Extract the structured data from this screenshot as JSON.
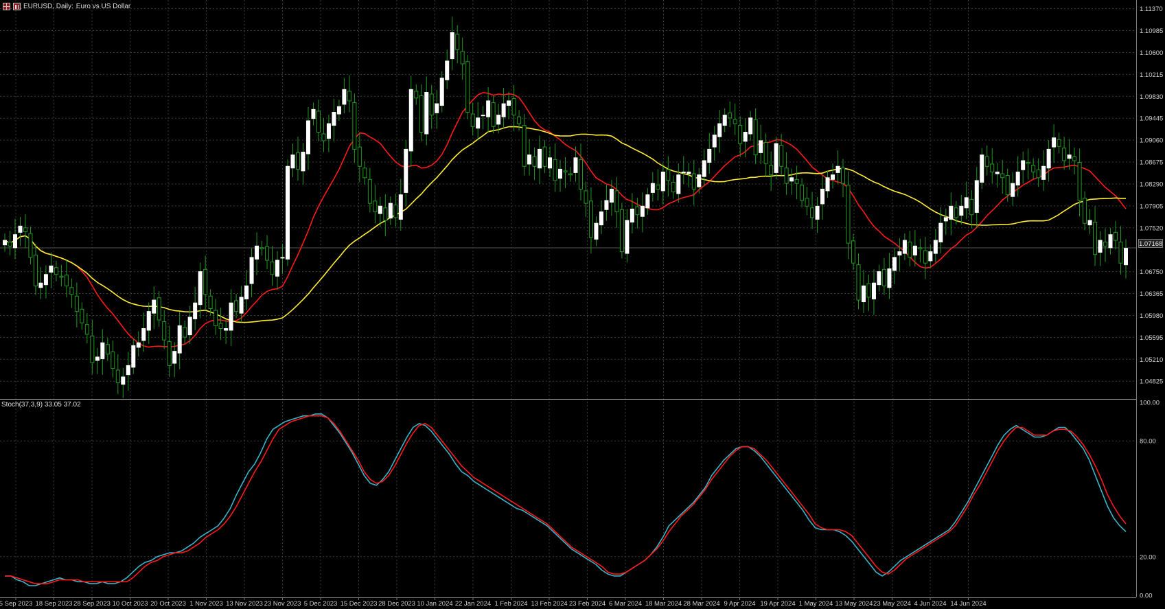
{
  "window": {
    "title_symbol": "EURUSD, Daily:",
    "title_desc": "Euro vs US Dollar",
    "icons": [
      "chart-grid-icon",
      "bar-chart-icon"
    ]
  },
  "colors": {
    "background": "#000000",
    "grid": "#3a3a3a",
    "bull_candle": "#ffffff",
    "bear_candle": "#000000",
    "wick": "#1f9b1f",
    "ma_fast": "#ff1a1a",
    "ma_slow": "#ffee33",
    "stoch_main": "#3ab4c8",
    "stoch_signal": "#ff1a1a",
    "axis_text": "#d0d0d0"
  },
  "price_axis": {
    "labels": [
      "1.11370",
      "1.10985",
      "1.10600",
      "1.10215",
      "1.09830",
      "1.09445",
      "1.09060",
      "1.08675",
      "1.08290",
      "1.07905",
      "1.07520",
      "1.07168",
      "1.06750",
      "1.06365",
      "1.05980",
      "1.05595",
      "1.05210",
      "1.04825"
    ],
    "current_price": "1.07168"
  },
  "indicator": {
    "label": "Stoch(37,3,9) 33.05 37.02",
    "axis_labels": [
      "100.00",
      "80.00",
      "20.00",
      "0.00"
    ]
  },
  "time_axis": {
    "labels": [
      "5 Sep 2023",
      "18 Sep 2023",
      "28 Sep 2023",
      "10 Oct 2023",
      "20 Oct 2023",
      "1 Nov 2023",
      "13 Nov 2023",
      "23 Nov 2023",
      "5 Dec 2023",
      "15 Dec 2023",
      "28 Dec 2023",
      "10 Jan 2024",
      "22 Jan 2024",
      "1 Feb 2024",
      "13 Feb 2024",
      "23 Feb 2024",
      "6 Mar 2024",
      "18 Mar 2024",
      "28 Mar 2024",
      "9 Apr 2024",
      "19 Apr 2024",
      "1 May 2024",
      "13 May 2024",
      "23 May 2024",
      "4 Jun 2024",
      "14 Jun 2024"
    ]
  },
  "chart_data": {
    "type": "candlestick",
    "symbol": "EURUSD",
    "timeframe": "Daily",
    "ylim": [
      1.0455,
      1.1145
    ],
    "closes": [
      1.073,
      1.072,
      1.074,
      1.0755,
      1.0745,
      1.07,
      1.065,
      1.0655,
      1.067,
      1.0685,
      1.067,
      1.0665,
      1.065,
      1.0635,
      1.0605,
      1.0585,
      1.0565,
      1.0515,
      1.0525,
      1.055,
      1.053,
      1.0505,
      1.048,
      1.049,
      1.051,
      1.0545,
      1.055,
      1.0575,
      1.0605,
      1.0625,
      1.059,
      1.0555,
      1.051,
      1.0535,
      1.058,
      1.056,
      1.0595,
      1.062,
      1.0675,
      1.0635,
      1.061,
      1.058,
      1.0575,
      1.0575,
      1.062,
      1.0605,
      1.063,
      1.065,
      1.07,
      1.072,
      1.0715,
      1.0695,
      1.067,
      1.0695,
      1.07,
      1.086,
      1.088,
      1.0855,
      1.0885,
      1.094,
      1.096,
      1.092,
      1.0905,
      1.0935,
      1.0955,
      1.0965,
      1.0995,
      1.0975,
      1.089,
      1.086,
      1.084,
      1.0795,
      1.078,
      1.079,
      1.0765,
      1.0795,
      1.077,
      1.081,
      1.089,
      1.0995,
      1.098,
      1.092,
      1.099,
      1.095,
      1.097,
      1.1015,
      1.1045,
      1.1095,
      1.1065,
      1.104,
      1.0955,
      1.093,
      1.0945,
      1.095,
      1.0975,
      1.093,
      1.095,
      1.097,
      1.0975,
      1.095,
      1.0935,
      1.086,
      1.088,
      1.086,
      1.089,
      1.086,
      1.0875,
      1.0835,
      1.0855,
      1.085,
      1.0845,
      1.0875,
      1.082,
      1.0795,
      1.0735,
      1.076,
      1.078,
      1.08,
      1.082,
      1.078,
      1.071,
      1.0765,
      1.0785,
      1.0775,
      1.079,
      1.081,
      1.083,
      1.082,
      1.085,
      1.0835,
      1.0815,
      1.0845,
      1.085,
      1.085,
      1.082,
      1.0845,
      1.087,
      1.089,
      1.0915,
      1.0935,
      1.095,
      1.0945,
      1.0935,
      1.09,
      1.092,
      1.0945,
      1.088,
      1.0905,
      1.0865,
      1.0845,
      1.09,
      1.086,
      1.083,
      1.084,
      1.083,
      1.08,
      1.079,
      1.077,
      1.079,
      1.082,
      1.084,
      1.0845,
      1.086,
      1.083,
      1.0725,
      1.069,
      1.0625,
      1.065,
      1.063,
      1.0655,
      1.0675,
      1.065,
      1.068,
      1.07,
      1.071,
      1.073,
      1.07,
      1.072,
      1.0715,
      1.069,
      1.071,
      1.073,
      1.076,
      1.077,
      1.079,
      1.077,
      1.079,
      1.0805,
      1.0775,
      1.0835,
      1.088,
      1.086,
      1.085,
      1.085,
      1.084,
      1.081,
      1.083,
      1.085,
      1.087,
      1.0865,
      1.085,
      1.084,
      1.086,
      1.089,
      1.091,
      1.0895,
      1.087,
      1.088,
      1.087,
      1.08,
      1.076,
      1.0765,
      1.0705,
      1.073,
      1.072,
      1.074,
      1.073,
      1.069,
      1.0716
    ],
    "overlays": [
      {
        "name": "",
        "type": "moving-average",
        "color": "#ff1a1a",
        "role": "fast"
      },
      {
        "name": "",
        "type": "moving-average",
        "color": "#ffee33",
        "role": "slow"
      }
    ],
    "stochastic": {
      "params": "37,3,9",
      "main_last": 33.05,
      "signal_last": 37.02,
      "ylim": [
        0,
        100
      ],
      "levels": [
        20,
        80
      ],
      "main_series": [
        10,
        10,
        8,
        7,
        5,
        5,
        6,
        7,
        8,
        9,
        8,
        8,
        7,
        7,
        6,
        6,
        7,
        6,
        6,
        7,
        9,
        12,
        15,
        17,
        18,
        20,
        21,
        22,
        22,
        23,
        25,
        27,
        30,
        32,
        34,
        36,
        40,
        45,
        52,
        58,
        64,
        68,
        74,
        81,
        86,
        88,
        90,
        91,
        92,
        93,
        93,
        94,
        94,
        92,
        88,
        84,
        79,
        74,
        68,
        62,
        58,
        57,
        60,
        64,
        70,
        76,
        82,
        87,
        89,
        88,
        85,
        81,
        77,
        73,
        68,
        64,
        62,
        59,
        57,
        55,
        53,
        51,
        49,
        47,
        45,
        44,
        42,
        40,
        38,
        36,
        33,
        30,
        27,
        24,
        22,
        20,
        18,
        16,
        13,
        11,
        10,
        10,
        12,
        14,
        16,
        18,
        21,
        25,
        30,
        36,
        39,
        42,
        45,
        48,
        52,
        56,
        62,
        66,
        70,
        73,
        76,
        77,
        77,
        75,
        72,
        68,
        64,
        60,
        56,
        52,
        48,
        44,
        39,
        35,
        34,
        34,
        34,
        33,
        31,
        28,
        24,
        20,
        16,
        12,
        10,
        12,
        15,
        18,
        20,
        22,
        24,
        26,
        28,
        30,
        32,
        34,
        38,
        43,
        48,
        54,
        60,
        66,
        72,
        78,
        83,
        86,
        88,
        86,
        84,
        82,
        82,
        83,
        85,
        87,
        87,
        84,
        80,
        76,
        70,
        62,
        54,
        46,
        40,
        36,
        33
      ],
      "signal_series": [
        10,
        10,
        9,
        8,
        7,
        6,
        6,
        6,
        7,
        8,
        8,
        8,
        8,
        7,
        7,
        7,
        7,
        7,
        7,
        7,
        7,
        9,
        12,
        15,
        17,
        18,
        20,
        21,
        22,
        22,
        23,
        25,
        27,
        30,
        32,
        34,
        37,
        41,
        46,
        52,
        58,
        64,
        69,
        75,
        81,
        86,
        88,
        90,
        91,
        92,
        93,
        93,
        93,
        92,
        89,
        85,
        80,
        75,
        70,
        64,
        60,
        58,
        59,
        62,
        67,
        73,
        79,
        84,
        88,
        89,
        87,
        83,
        79,
        75,
        71,
        67,
        64,
        61,
        59,
        57,
        55,
        53,
        51,
        49,
        47,
        45,
        43,
        41,
        39,
        37,
        34,
        31,
        28,
        25,
        23,
        21,
        19,
        17,
        15,
        12,
        11,
        11,
        12,
        14,
        16,
        18,
        21,
        24,
        28,
        33,
        37,
        41,
        44,
        47,
        51,
        55,
        60,
        64,
        68,
        72,
        75,
        77,
        77,
        76,
        73,
        70,
        66,
        62,
        58,
        54,
        50,
        46,
        42,
        37,
        35,
        34,
        34,
        34,
        33,
        31,
        27,
        23,
        19,
        15,
        12,
        11,
        13,
        16,
        19,
        21,
        23,
        25,
        27,
        29,
        31,
        33,
        36,
        41,
        46,
        52,
        57,
        63,
        69,
        75,
        80,
        84,
        87,
        87,
        85,
        83,
        83,
        83,
        85,
        86,
        86,
        85,
        82,
        78,
        73,
        67,
        60,
        52,
        46,
        41,
        37
      ]
    }
  }
}
